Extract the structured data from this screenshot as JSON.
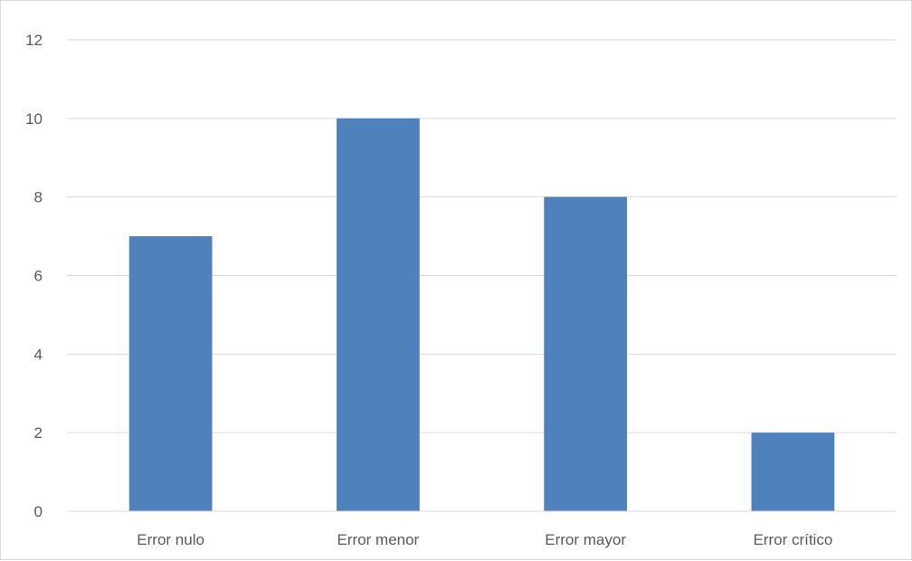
{
  "chart_data": {
    "type": "bar",
    "title": "",
    "xlabel": "",
    "ylabel": "",
    "categories": [
      "Error nulo",
      "Error menor",
      "Error mayor",
      "Error crítico"
    ],
    "values": [
      7,
      10,
      8,
      2
    ],
    "ylim": [
      0,
      12
    ],
    "yticks": [
      0,
      2,
      4,
      6,
      8,
      10,
      12
    ],
    "grid": true,
    "legend": "none",
    "colors": {
      "bar": "#4f81bd",
      "grid": "#d9d9d9",
      "axis": "#d9d9d9",
      "text": "#595959"
    }
  }
}
